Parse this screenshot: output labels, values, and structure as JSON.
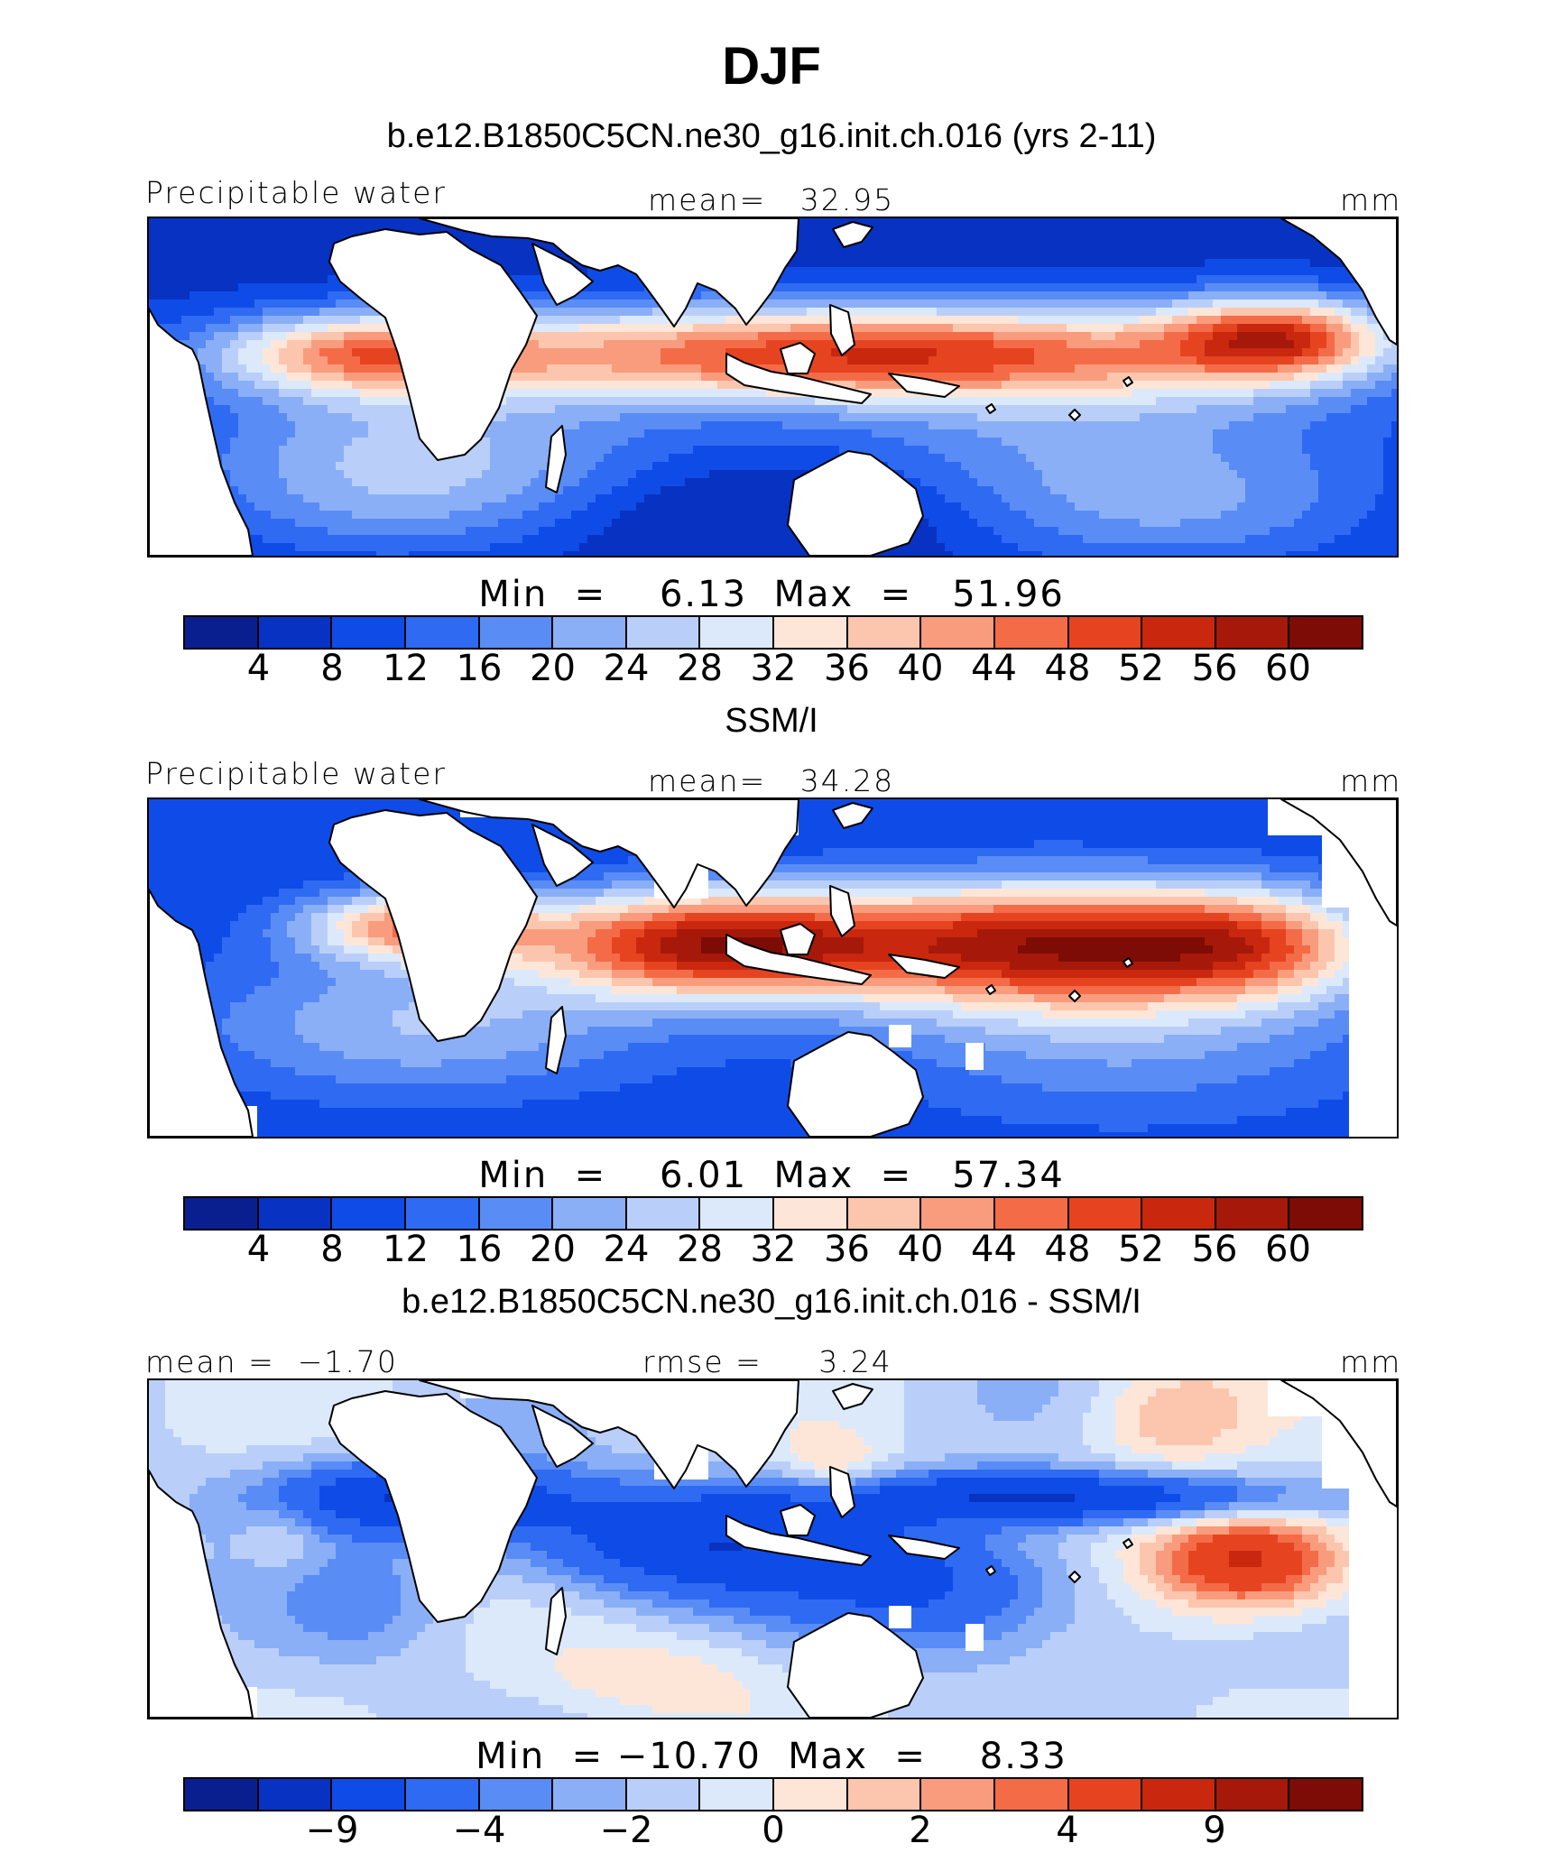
{
  "title": "DJF",
  "colors": {
    "land": "#ffffff",
    "coast": "#000000",
    "palette": [
      "#0a1f8f",
      "#0732c2",
      "#0f4be6",
      "#2f6af2",
      "#5a8cf5",
      "#8aaff7",
      "#b9cff9",
      "#dce9fb",
      "#fde6d8",
      "#fcc6ae",
      "#f99c7d",
      "#f46b48",
      "#e64420",
      "#c9280f",
      "#a6190a",
      "#7c0c05"
    ]
  },
  "chart_data": [
    {
      "type": "heatmap",
      "title": "b.e12.B1850C5CN.ne30_g16.init.ch.016 (yrs 2-11)",
      "label_left": "Precipitable water",
      "label_center": "mean=   32.95",
      "units": "mm",
      "minmax": "Min  =    6.13  Max  =   51.96",
      "min": 6.13,
      "max": 51.96,
      "mean": 32.95,
      "colorbar_ticks": [
        "4",
        "8",
        "12",
        "16",
        "20",
        "24",
        "28",
        "32",
        "36",
        "40",
        "44",
        "48",
        "52",
        "56",
        "60"
      ],
      "variant": "model"
    },
    {
      "type": "heatmap",
      "title": "SSM/I",
      "label_left": "Precipitable water",
      "label_center": "mean=   34.28",
      "units": "mm",
      "minmax": "Min  =    6.01  Max  =   57.34",
      "min": 6.01,
      "max": 57.34,
      "mean": 34.28,
      "colorbar_ticks": [
        "4",
        "8",
        "12",
        "16",
        "20",
        "24",
        "28",
        "32",
        "36",
        "40",
        "44",
        "48",
        "52",
        "56",
        "60"
      ],
      "variant": "obs"
    },
    {
      "type": "heatmap",
      "title": "b.e12.B1850C5CN.ne30_g16.init.ch.016 - SSM/I",
      "label_left": "mean =  −1.70",
      "label_center": "rmse =     3.24",
      "units": "mm",
      "minmax": "Min  = −10.70  Max  =    8.33",
      "min": -10.7,
      "max": 8.33,
      "mean": -1.7,
      "rmse": 3.24,
      "colorbar_ticks": [
        "−9",
        "−4",
        "−2",
        "0",
        "2",
        "4",
        "9"
      ],
      "colorbar_tick_boxes": [
        2,
        4,
        6,
        8,
        10,
        12,
        14
      ],
      "variant": "diff"
    }
  ]
}
